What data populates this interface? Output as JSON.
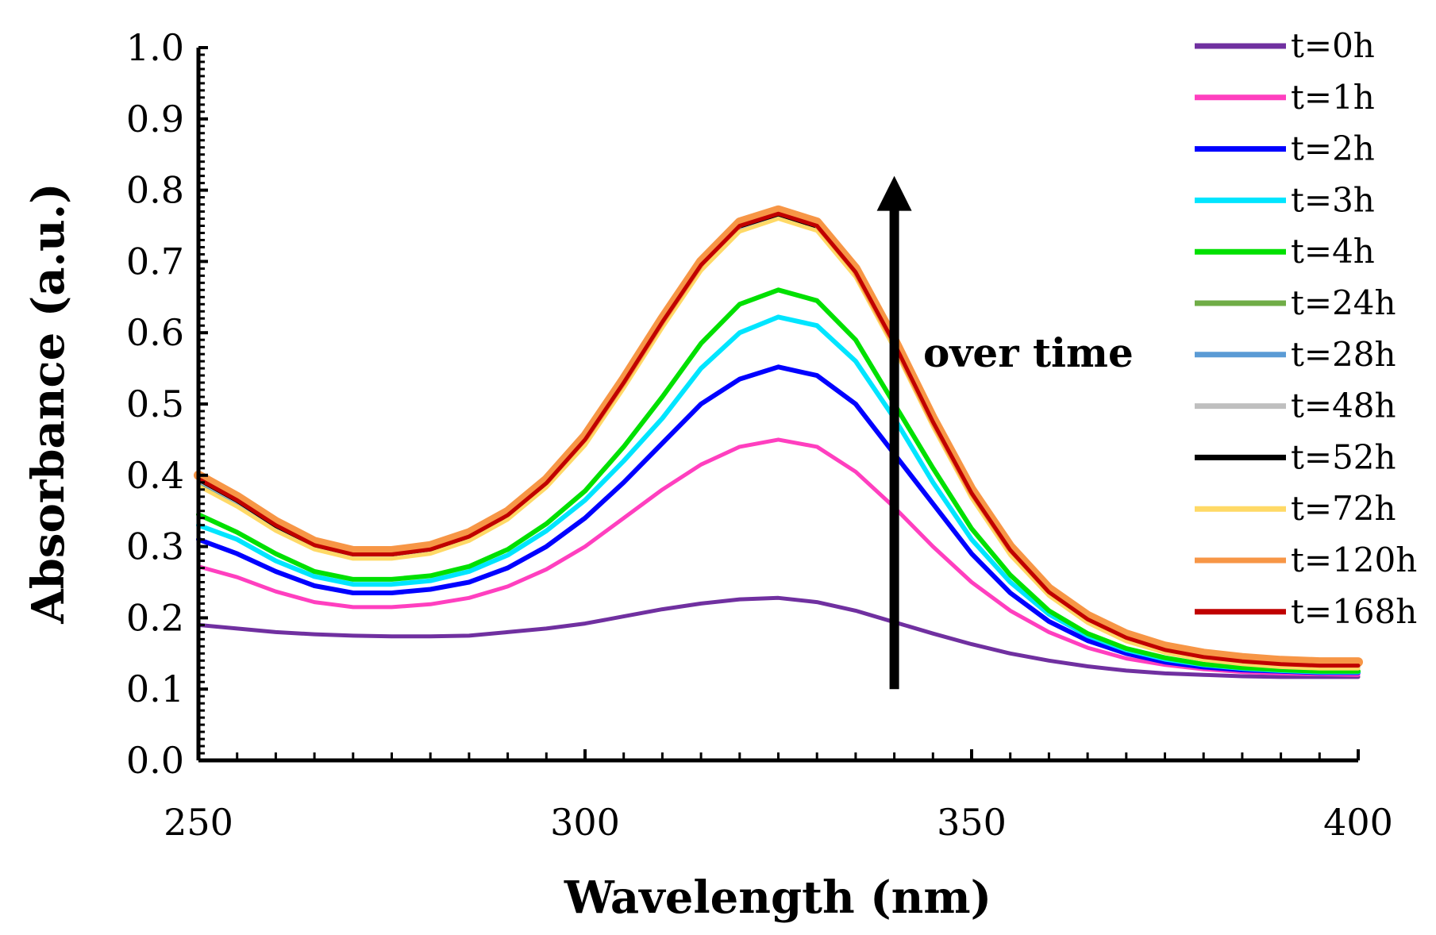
{
  "chart_data": {
    "type": "line",
    "title": "",
    "xlabel": "Wavelength (nm)",
    "ylabel": "Absorbance (a.u.)",
    "xlim": [
      250,
      400
    ],
    "ylim": [
      0.0,
      1.0
    ],
    "xticks": [
      "250",
      "300",
      "350",
      "400"
    ],
    "yticks": [
      "0.0",
      "0.1",
      "0.2",
      "0.3",
      "0.4",
      "0.5",
      "0.6",
      "0.7",
      "0.8",
      "0.9",
      "1.0"
    ],
    "legend_position": "right",
    "x": [
      250,
      255,
      260,
      265,
      270,
      275,
      280,
      285,
      290,
      295,
      300,
      305,
      310,
      315,
      320,
      325,
      330,
      335,
      340,
      345,
      350,
      355,
      360,
      365,
      370,
      375,
      380,
      385,
      390,
      395,
      400
    ],
    "series": [
      {
        "name": "t=0h",
        "color": "#7030a0",
        "values": [
          0.19,
          0.185,
          0.18,
          0.177,
          0.175,
          0.174,
          0.174,
          0.175,
          0.18,
          0.185,
          0.192,
          0.202,
          0.212,
          0.22,
          0.226,
          0.228,
          0.222,
          0.21,
          0.194,
          0.178,
          0.163,
          0.15,
          0.14,
          0.132,
          0.126,
          0.122,
          0.12,
          0.118,
          0.117,
          0.117,
          0.117
        ]
      },
      {
        "name": "t=1h",
        "color": "#ff3fbf",
        "values": [
          0.272,
          0.257,
          0.237,
          0.222,
          0.215,
          0.215,
          0.219,
          0.228,
          0.244,
          0.268,
          0.3,
          0.34,
          0.38,
          0.415,
          0.44,
          0.45,
          0.44,
          0.405,
          0.355,
          0.3,
          0.25,
          0.21,
          0.18,
          0.158,
          0.143,
          0.134,
          0.128,
          0.124,
          0.122,
          0.121,
          0.12
        ]
      },
      {
        "name": "t=2h",
        "color": "#0000ff",
        "values": [
          0.31,
          0.29,
          0.265,
          0.245,
          0.235,
          0.235,
          0.24,
          0.25,
          0.27,
          0.3,
          0.34,
          0.39,
          0.445,
          0.5,
          0.535,
          0.552,
          0.54,
          0.5,
          0.43,
          0.36,
          0.29,
          0.235,
          0.195,
          0.168,
          0.15,
          0.138,
          0.131,
          0.127,
          0.125,
          0.123,
          0.123
        ]
      },
      {
        "name": "t=3h",
        "color": "#00e5ff",
        "values": [
          0.33,
          0.31,
          0.28,
          0.258,
          0.247,
          0.247,
          0.252,
          0.265,
          0.288,
          0.322,
          0.365,
          0.42,
          0.48,
          0.55,
          0.6,
          0.622,
          0.61,
          0.56,
          0.48,
          0.39,
          0.31,
          0.25,
          0.205,
          0.175,
          0.155,
          0.142,
          0.134,
          0.129,
          0.126,
          0.124,
          0.124
        ]
      },
      {
        "name": "t=4h",
        "color": "#00e000",
        "values": [
          0.345,
          0.32,
          0.29,
          0.265,
          0.254,
          0.254,
          0.259,
          0.272,
          0.296,
          0.332,
          0.378,
          0.44,
          0.51,
          0.585,
          0.64,
          0.66,
          0.645,
          0.59,
          0.5,
          0.41,
          0.325,
          0.26,
          0.21,
          0.178,
          0.157,
          0.144,
          0.135,
          0.13,
          0.127,
          0.125,
          0.125
        ]
      },
      {
        "name": "t=24h",
        "color": "#70ad47",
        "values": [
          0.39,
          0.36,
          0.325,
          0.298,
          0.285,
          0.285,
          0.292,
          0.31,
          0.34,
          0.385,
          0.445,
          0.525,
          0.61,
          0.69,
          0.745,
          0.762,
          0.745,
          0.68,
          0.58,
          0.47,
          0.37,
          0.29,
          0.232,
          0.194,
          0.168,
          0.152,
          0.142,
          0.136,
          0.132,
          0.13,
          0.13
        ]
      },
      {
        "name": "t=28h",
        "color": "#5b9bd5",
        "values": [
          0.392,
          0.362,
          0.327,
          0.3,
          0.287,
          0.287,
          0.294,
          0.312,
          0.342,
          0.387,
          0.447,
          0.527,
          0.612,
          0.692,
          0.747,
          0.764,
          0.747,
          0.682,
          0.582,
          0.472,
          0.372,
          0.292,
          0.234,
          0.196,
          0.17,
          0.154,
          0.144,
          0.138,
          0.134,
          0.132,
          0.132
        ]
      },
      {
        "name": "t=48h",
        "color": "#bfbfbf",
        "values": [
          0.393,
          0.363,
          0.328,
          0.301,
          0.288,
          0.288,
          0.295,
          0.313,
          0.343,
          0.388,
          0.448,
          0.528,
          0.613,
          0.693,
          0.748,
          0.765,
          0.748,
          0.683,
          0.583,
          0.473,
          0.373,
          0.293,
          0.235,
          0.197,
          0.171,
          0.155,
          0.145,
          0.139,
          0.135,
          0.133,
          0.133
        ]
      },
      {
        "name": "t=52h",
        "color": "#000000",
        "values": [
          0.394,
          0.364,
          0.329,
          0.302,
          0.289,
          0.289,
          0.296,
          0.314,
          0.344,
          0.389,
          0.449,
          0.529,
          0.614,
          0.694,
          0.749,
          0.766,
          0.749,
          0.684,
          0.584,
          0.474,
          0.374,
          0.294,
          0.236,
          0.198,
          0.172,
          0.156,
          0.146,
          0.14,
          0.136,
          0.134,
          0.134
        ]
      },
      {
        "name": "t=72h",
        "color": "#ffd966",
        "values": [
          0.385,
          0.356,
          0.322,
          0.296,
          0.283,
          0.283,
          0.29,
          0.308,
          0.338,
          0.383,
          0.442,
          0.522,
          0.607,
          0.687,
          0.742,
          0.76,
          0.743,
          0.678,
          0.578,
          0.468,
          0.368,
          0.288,
          0.231,
          0.193,
          0.167,
          0.151,
          0.141,
          0.135,
          0.131,
          0.129,
          0.129
        ]
      },
      {
        "name": "t=120h",
        "color": "#f79646",
        "values": [
          0.4,
          0.37,
          0.335,
          0.307,
          0.294,
          0.294,
          0.301,
          0.319,
          0.349,
          0.394,
          0.455,
          0.535,
          0.62,
          0.7,
          0.755,
          0.772,
          0.755,
          0.69,
          0.59,
          0.48,
          0.38,
          0.3,
          0.241,
          0.203,
          0.177,
          0.16,
          0.15,
          0.144,
          0.14,
          0.138,
          0.138
        ]
      },
      {
        "name": "t=168h",
        "color": "#c00000",
        "values": [
          0.395,
          0.365,
          0.33,
          0.302,
          0.289,
          0.289,
          0.296,
          0.314,
          0.344,
          0.389,
          0.45,
          0.53,
          0.615,
          0.695,
          0.75,
          0.767,
          0.75,
          0.685,
          0.585,
          0.475,
          0.375,
          0.295,
          0.236,
          0.198,
          0.172,
          0.155,
          0.145,
          0.139,
          0.135,
          0.133,
          0.133
        ]
      }
    ],
    "annotations": [
      {
        "text": "over time",
        "arrow_x": 340,
        "arrow_from_y": 0.1,
        "arrow_to_y": 0.82
      }
    ]
  }
}
